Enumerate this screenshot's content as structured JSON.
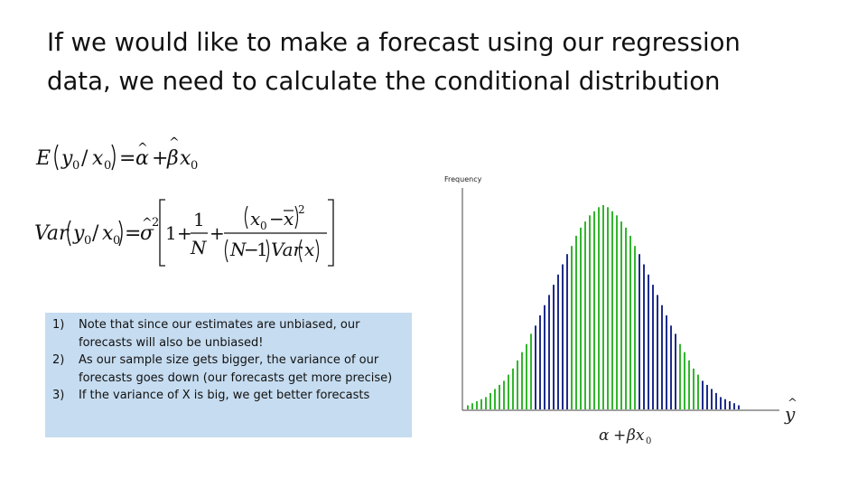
{
  "slide": {
    "title_lines": [
      "If we would like to make a forecast using our regression",
      "data, we need to calculate the conditional distribution"
    ]
  },
  "notes": {
    "items": [
      {
        "num": "1)",
        "text": "Note that since our estimates are unbiased, our forecasts will also be unbiased!"
      },
      {
        "num": "2)",
        "text": "As our sample size gets bigger, the variance of our forecasts goes down (our forecasts get more precise)"
      },
      {
        "num": "3)",
        "text": "If the variance of X is big, we get better forecasts"
      }
    ]
  },
  "colors": {
    "notes_background": "#c6dcf0",
    "bar_green": "#33b52e",
    "bar_blue": "#1f2d8a"
  },
  "chart_data": {
    "type": "bar",
    "ylabel": "Frequency",
    "bar_count": 61,
    "distribution": "normal",
    "series": [
      {
        "values": [
          0.02,
          0.03,
          0.04,
          0.05,
          0.06,
          0.08,
          0.1,
          0.12,
          0.14,
          0.17,
          0.2,
          0.24,
          0.28,
          0.32,
          0.37,
          0.41,
          0.46,
          0.51,
          0.56,
          0.61,
          0.66,
          0.71,
          0.76,
          0.8,
          0.85,
          0.89,
          0.92,
          0.95,
          0.97,
          0.99,
          1.0,
          0.99,
          0.97,
          0.95,
          0.92,
          0.89,
          0.85,
          0.8,
          0.76,
          0.71,
          0.66,
          0.61,
          0.56,
          0.51,
          0.46,
          0.41,
          0.37,
          0.32,
          0.28,
          0.24,
          0.2,
          0.17,
          0.14,
          0.12,
          0.1,
          0.08,
          0.06,
          0.05,
          0.04,
          0.03,
          0.02
        ]
      }
    ],
    "color_bands": [
      {
        "color": "green",
        "from": 0,
        "to": 14
      },
      {
        "color": "blue",
        "from": 15,
        "to": 22
      },
      {
        "color": "green",
        "from": 23,
        "to": 37
      },
      {
        "color": "blue",
        "from": 38,
        "to": 46
      },
      {
        "color": "green",
        "from": 47,
        "to": 51
      },
      {
        "color": "blue",
        "from": 52,
        "to": 60
      }
    ]
  }
}
